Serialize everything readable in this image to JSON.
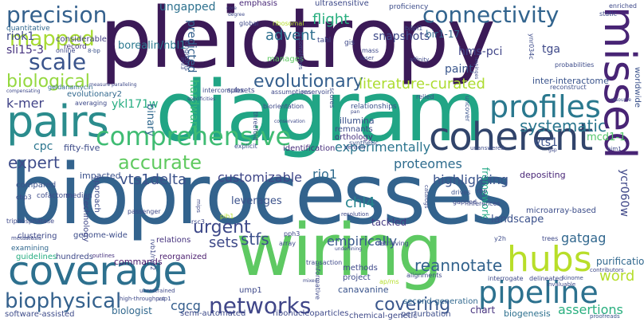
{
  "words": [
    {
      "t": "pleiotropy",
      "c": "#3b1a57"
    },
    {
      "t": "diagram",
      "c": "#21a585"
    },
    {
      "t": "bioprocesses",
      "c": "#33638d"
    },
    {
      "t": "wiring",
      "c": "#5ec962"
    },
    {
      "t": "coverage",
      "c": "#2d708e"
    },
    {
      "t": "pairs",
      "c": "#2b8c8d"
    },
    {
      "t": "coherent",
      "c": "#31446b"
    },
    {
      "t": "comprehensive",
      "c": "#3fbc73"
    },
    {
      "t": "pipeline",
      "c": "#2c718e"
    },
    {
      "t": "hubs",
      "c": "#b8de29"
    },
    {
      "t": "profiles",
      "c": "#2a788e"
    },
    {
      "t": "connectivity",
      "c": "#32648e"
    },
    {
      "t": "precision",
      "c": "#34618d"
    },
    {
      "t": "mapped",
      "c": "#a8db34"
    },
    {
      "t": "scale",
      "c": "#3a548c"
    },
    {
      "t": "accurate",
      "c": "#60ca60"
    },
    {
      "t": "networks",
      "c": "#404688"
    },
    {
      "t": "biophysical",
      "c": "#34618d"
    },
    {
      "t": "covering",
      "c": "#39568c"
    },
    {
      "t": "systematic",
      "c": "#2a768e"
    },
    {
      "t": "biological",
      "c": "#95d840"
    },
    {
      "t": "evolutionary",
      "c": "#355f8d"
    },
    {
      "t": "missed",
      "c": "#482475"
    },
    {
      "t": "urgent",
      "c": "#3e4989"
    },
    {
      "t": "reannotate",
      "c": "#33638d"
    },
    {
      "t": "flight",
      "c": "#29af7f"
    },
    {
      "t": "advent",
      "c": "#2e6f8e"
    },
    {
      "t": "expert",
      "c": "#3e4c8a"
    },
    {
      "t": "proteomes",
      "c": "#2f6c8e"
    },
    {
      "t": "literature-curated",
      "c": "#addc30"
    },
    {
      "t": "experimentally",
      "c": "#2b758e"
    },
    {
      "t": "vts1delta",
      "c": "#3b528b"
    },
    {
      "t": "customizable",
      "c": "#3f4788"
    },
    {
      "t": "rio1",
      "c": "#2f6b8e"
    },
    {
      "t": "chl4",
      "c": "#25848e"
    },
    {
      "t": "highlighting",
      "c": "#3a548c"
    },
    {
      "t": "sets",
      "c": "#3e4989"
    },
    {
      "t": "stfs",
      "c": "#3c508b"
    },
    {
      "t": "empirically",
      "c": "#38588c"
    },
    {
      "t": "gatgag",
      "c": "#31678e"
    },
    {
      "t": "word",
      "c": "#b5de2b"
    },
    {
      "t": "assertions",
      "c": "#29af7f"
    },
    {
      "t": "cgcg",
      "c": "#355e8d"
    },
    {
      "t": "ungapped",
      "c": "#2d718e"
    },
    {
      "t": "snapshots",
      "c": "#2f6c8e"
    },
    {
      "t": "hms-pci",
      "c": "#3e4a89"
    },
    {
      "t": "tga",
      "c": "#404588"
    },
    {
      "t": "k-mer",
      "c": "#3e4989"
    },
    {
      "t": "ykl171w",
      "c": "#404387"
    },
    {
      "t": "vts1",
      "c": "#26ad81"
    },
    {
      "t": "mcd1-1",
      "c": "#3b528b"
    },
    {
      "t": "sli15-3",
      "c": "#52c569"
    },
    {
      "t": "riok1",
      "c": "#46337f"
    },
    {
      "t": "cpc",
      "c": "#3e4989"
    },
    {
      "t": "paint",
      "c": "#2b758e"
    },
    {
      "t": "binary",
      "c": "#39568c"
    },
    {
      "t": "hardware",
      "c": "#31688e"
    },
    {
      "t": "predicted",
      "c": "#3bbb75"
    },
    {
      "t": "ycr060w",
      "c": "#34608d"
    },
    {
      "t": "borealin/nbl1",
      "c": "#3f4788"
    },
    {
      "t": "landscape",
      "c": "#2a788e"
    },
    {
      "t": "tackled",
      "c": "#3b518b"
    },
    {
      "t": "leverages",
      "c": "#443983"
    },
    {
      "t": "chart",
      "c": "#3b528b"
    },
    {
      "t": "biologist",
      "c": "#46327e"
    },
    {
      "t": "commands",
      "c": "#31688e"
    },
    {
      "t": "framework",
      "c": "#481a6c"
    },
    {
      "t": "purification",
      "c": "#22a884"
    },
    {
      "t": "bir1-17",
      "c": "#31688e"
    },
    {
      "t": "inter-interactome",
      "c": "#31688e"
    },
    {
      "t": "fifty-five",
      "c": "#3a548c"
    },
    {
      "t": "considerable",
      "c": "#3e4c8a"
    },
    {
      "t": "quantitative",
      "c": "#433e85"
    },
    {
      "t": "record",
      "c": "#31688e"
    },
    {
      "t": "emphasis",
      "c": "#453781"
    },
    {
      "t": "ultrasensitive",
      "c": "#482878"
    },
    {
      "t": "proficiency",
      "c": "#3e4a89"
    },
    {
      "t": "illumina",
      "c": "#3d4d8a"
    },
    {
      "t": "remnants",
      "c": "#3b528b"
    },
    {
      "t": "orthology",
      "c": "#3e4c8a"
    },
    {
      "t": "synthetic",
      "c": "#46327e"
    },
    {
      "t": "identification",
      "c": "#3a548c"
    },
    {
      "t": "densely",
      "c": "#472d7b"
    },
    {
      "t": "depositing",
      "c": "#3e4989"
    },
    {
      "t": "unanswered",
      "c": "#482677"
    },
    {
      "t": "microarray-based",
      "c": "#3e4c8a"
    },
    {
      "t": "semi-automated",
      "c": "#3d4e8a"
    },
    {
      "t": "ribonucleoparticles",
      "c": "#3e4a89"
    },
    {
      "t": "chemical-genetic",
      "c": "#3e4989"
    },
    {
      "t": "perturbation",
      "c": "#3e4989"
    },
    {
      "t": "canavanine",
      "c": "#3d4e8a"
    },
    {
      "t": "second-generation",
      "c": "#3a548c"
    },
    {
      "t": "biogenesis",
      "c": "#31688e"
    },
    {
      "t": "proofreads",
      "c": "#2d708e"
    },
    {
      "t": "software-assisted",
      "c": "#3a548c"
    },
    {
      "t": "guidelines",
      "c": "#3e4c8a"
    },
    {
      "t": "hundreds",
      "c": "#26ad81"
    },
    {
      "t": "outlines",
      "c": "#3e4989"
    },
    {
      "t": "reorganized",
      "c": "#46327e"
    },
    {
      "t": "clustering",
      "c": "#481a6c"
    },
    {
      "t": "genome-wide",
      "c": "#3e4989"
    },
    {
      "t": "relations",
      "c": "#3d4d8a"
    },
    {
      "t": "examining",
      "c": "#46327e"
    },
    {
      "t": "compared",
      "c": "#31688e"
    },
    {
      "t": "cofactors",
      "c": "#3b528b"
    },
    {
      "t": "median",
      "c": "#3e4c8a"
    },
    {
      "t": "impacted",
      "c": "#3e4989"
    },
    {
      "t": "approach",
      "c": "#3b518b"
    },
    {
      "t": "technology",
      "c": "#3e4c8a"
    },
    {
      "t": "markov",
      "c": "#3f4788"
    },
    {
      "t": "evolutionary2",
      "c": "#ffffff"
    },
    {
      "t": "averaging",
      "c": "#31688e"
    },
    {
      "t": "manages",
      "c": "#3e4989"
    },
    {
      "t": "global",
      "c": "#5ec962"
    },
    {
      "t": "ribosomal",
      "c": "#3e4989"
    },
    {
      "t": "kingdoms",
      "c": "#b5de2b"
    },
    {
      "t": "intercomplex",
      "c": "#3b528b"
    },
    {
      "t": "subsets",
      "c": "#3e4c8a"
    },
    {
      "t": "assumptions",
      "c": "#3f4788"
    },
    {
      "t": "reservoir",
      "c": "#3e4989"
    },
    {
      "t": "scores",
      "c": "#3e4989"
    },
    {
      "t": "relationships",
      "c": "#3d4e8a"
    },
    {
      "t": "biorientation",
      "c": "#3b528b"
    },
    {
      "t": "threefold",
      "c": "#3e4989"
    },
    {
      "t": "explicit",
      "c": "#3e4c8a"
    },
    {
      "t": "geldanamycin",
      "c": "#3b528b"
    },
    {
      "t": "relied",
      "c": "#31688e"
    },
    {
      "t": "reconstruct",
      "c": "#3d4e8a"
    },
    {
      "t": "uncover",
      "c": "#3d4e8a"
    },
    {
      "t": "probabilities",
      "c": "#3a548c"
    },
    {
      "t": "mass",
      "c": "#3e4c8a"
    },
    {
      "t": "laser",
      "c": "#3e4989"
    },
    {
      "t": "affinity",
      "c": "#3e4989"
    },
    {
      "t": "gis",
      "c": "#3e4989"
    },
    {
      "t": "tahl",
      "c": "#3e4989"
    },
    {
      "t": "b/ipl1",
      "c": "#3e4989"
    },
    {
      "t": "iml3",
      "c": "#3e4c8a"
    },
    {
      "t": "online",
      "c": "#3e4989"
    },
    {
      "t": "8-bp",
      "c": "#3e4989"
    },
    {
      "t": "alignments",
      "c": "#3b528b"
    },
    {
      "t": "y2h",
      "c": "#3e4989"
    },
    {
      "t": "trees",
      "c": "#3e4c8a"
    },
    {
      "t": "drives",
      "c": "#3e4989"
    },
    {
      "t": "gapped",
      "c": "#3b528b"
    },
    {
      "t": "rbp",
      "c": "#3e4989"
    },
    {
      "t": "rvb1/rvb2",
      "c": "#3e4c8a"
    },
    {
      "t": "passenger",
      "c": "#3e4989"
    },
    {
      "t": "rsc3",
      "c": "#3e4989"
    },
    {
      "t": "pih1",
      "c": "#3e4989"
    },
    {
      "t": "mips",
      "c": "#b5de2b"
    },
    {
      "t": "pph3",
      "c": "#3e4989"
    },
    {
      "t": "array",
      "c": "#3e4989"
    },
    {
      "t": "transaction",
      "c": "#3e4c8a"
    },
    {
      "t": "methods",
      "c": "#3e4989"
    },
    {
      "t": "project",
      "c": "#3e4989"
    },
    {
      "t": "retrieving",
      "c": "#3e4c8a"
    },
    {
      "t": "resolution",
      "c": "#3e4989"
    },
    {
      "t": "catalogs",
      "c": "#3e4989"
    },
    {
      "t": "interrogate",
      "c": "#3e4c8a"
    },
    {
      "t": "delineated",
      "c": "#3e4989"
    },
    {
      "t": "invaluable",
      "c": "#3e4989"
    },
    {
      "t": "kinome",
      "c": "#3e4989"
    },
    {
      "t": "contributors",
      "c": "#3e4c8a"
    },
    {
      "t": "triphosphatase",
      "c": "#3e4989"
    },
    {
      "t": "ump1",
      "c": "#3e4989"
    },
    {
      "t": "unrestrained",
      "c": "#3e4989"
    },
    {
      "t": "vsp1",
      "c": "#3e4989"
    },
    {
      "t": "high-throughput",
      "c": "#3e4c8a"
    },
    {
      "t": "informative",
      "c": "#3e4989"
    },
    {
      "t": "ap/ms",
      "c": "#3e4989"
    },
    {
      "t": "static",
      "c": "#b5de2b"
    },
    {
      "t": "enriched",
      "c": "#3e4989"
    },
    {
      "t": "resource",
      "c": "#3e4989"
    },
    {
      "t": "worldwide",
      "c": "#3e4989"
    },
    {
      "t": "ynr034c",
      "c": "#3b528b"
    },
    {
      "t": "impinges",
      "c": "#3e4c8a"
    },
    {
      "t": "metastasis",
      "c": "#3e4989"
    },
    {
      "t": "cbp3",
      "c": "#3e4989"
    },
    {
      "t": "bim1",
      "c": "#3e4989"
    },
    {
      "t": "gsp",
      "c": "#3e4989"
    },
    {
      "t": "inferences",
      "c": "#3e4989"
    },
    {
      "t": "measure",
      "c": "#3e4989"
    },
    {
      "t": "paralleling",
      "c": "#3e4989"
    },
    {
      "t": "compensating",
      "c": "#3e4989"
    },
    {
      "t": "specificities",
      "c": "#3e4989"
    },
    {
      "t": "core",
      "c": "#3e4989"
    },
    {
      "t": "degree",
      "c": "#3e4989"
    },
    {
      "t": "mixed",
      "c": "#3e4989"
    },
    {
      "t": "underlining",
      "c": "#3e4989"
    },
    {
      "t": "accomplishes",
      "c": "#3e4989"
    },
    {
      "t": "conservation",
      "c": "#3e4989"
    },
    {
      "t": "pan",
      "c": "#3e4989"
    },
    {
      "t": "anticipate",
      "c": "#3e4989"
    }
  ]
}
